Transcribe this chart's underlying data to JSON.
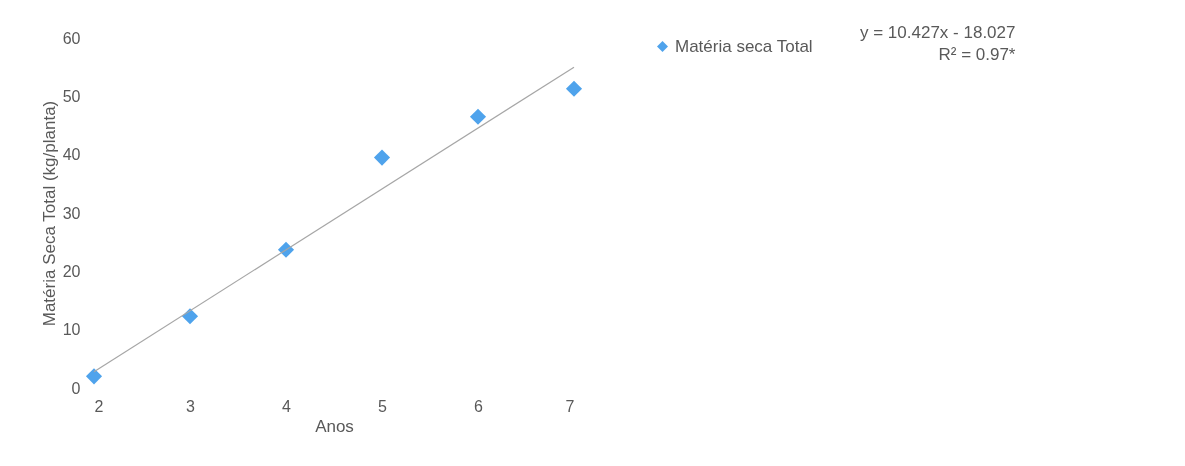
{
  "chart_data": {
    "type": "scatter",
    "xlabel": "Anos",
    "ylabel": "Matéria Seca Total (kg/planta)",
    "x": [
      2,
      3,
      4,
      5,
      6,
      7
    ],
    "series": [
      {
        "name": "Matéria seca Total",
        "color": "#4fa3ec",
        "values": [
          2,
          12.3,
          23.7,
          39.5,
          46.5,
          51.3
        ]
      },
      {
        "type": "line",
        "marker": "none",
        "color": "#a6a6a6",
        "x": [
          2,
          7
        ],
        "values": [
          2.8,
          55
        ]
      }
    ],
    "xlim": [
      2,
      7
    ],
    "xticks": [
      2,
      3,
      4,
      5,
      6,
      7
    ],
    "ylim": [
      0,
      60
    ],
    "yticks": [
      0,
      10,
      20,
      30,
      40,
      50,
      60
    ],
    "grid": false,
    "legend": "top right",
    "marker": "diamond",
    "annotations": [
      "y = 10.427x - 18.027\nR² = 0.97*"
    ]
  }
}
